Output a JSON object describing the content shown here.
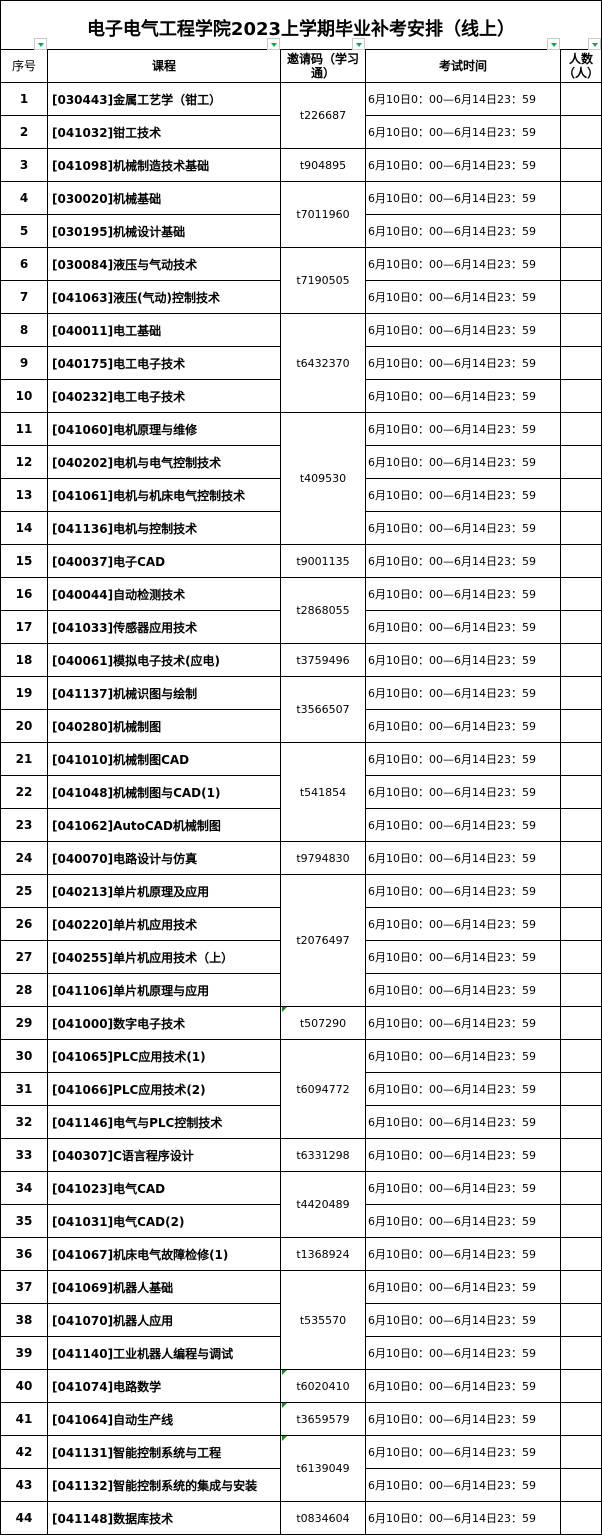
{
  "title": "电子电气工程学院2023上学期毕业补考安排（线上）",
  "headers": {
    "no": "序号",
    "course": "课程",
    "code": "邀请码（学习通）",
    "time": "考试时间",
    "count": "人数（人）"
  },
  "exam_time": "6月10日0：00—6月14日23：59",
  "colors": {
    "filter_arrow": "#1aa05a",
    "comment_marker": "#1a8a1a",
    "grid": "#000000"
  },
  "rows": [
    {
      "no": "1",
      "course": "[030443]金属工艺学（钳工）"
    },
    {
      "no": "2",
      "course": "[041032]钳工技术"
    },
    {
      "no": "3",
      "course": "[041098]机械制造技术基础"
    },
    {
      "no": "4",
      "course": "[030020]机械基础"
    },
    {
      "no": "5",
      "course": "[030195]机械设计基础"
    },
    {
      "no": "6",
      "course": "[030084]液压与气动技术"
    },
    {
      "no": "7",
      "course": "[041063]液压(气动)控制技术"
    },
    {
      "no": "8",
      "course": "[040011]电工基础"
    },
    {
      "no": "9",
      "course": "[040175]电工电子技术"
    },
    {
      "no": "10",
      "course": "[040232]电工电子技术"
    },
    {
      "no": "11",
      "course": "[041060]电机原理与维修"
    },
    {
      "no": "12",
      "course": "[040202]电机与电气控制技术"
    },
    {
      "no": "13",
      "course": "[041061]电机与机床电气控制技术"
    },
    {
      "no": "14",
      "course": "[041136]电机与控制技术"
    },
    {
      "no": "15",
      "course": "[040037]电子CAD"
    },
    {
      "no": "16",
      "course": "[040044]自动检测技术"
    },
    {
      "no": "17",
      "course": "[041033]传感器应用技术"
    },
    {
      "no": "18",
      "course": "[040061]模拟电子技术(应电)"
    },
    {
      "no": "19",
      "course": "[041137]机械识图与绘制"
    },
    {
      "no": "20",
      "course": "[040280]机械制图"
    },
    {
      "no": "21",
      "course": "[041010]机械制图CAD"
    },
    {
      "no": "22",
      "course": "[041048]机械制图与CAD(1)"
    },
    {
      "no": "23",
      "course": "[041062]AutoCAD机械制图"
    },
    {
      "no": "24",
      "course": "[040070]电路设计与仿真"
    },
    {
      "no": "25",
      "course": "[040213]单片机原理及应用"
    },
    {
      "no": "26",
      "course": "[040220]单片机应用技术"
    },
    {
      "no": "27",
      "course": "[040255]单片机应用技术（上）"
    },
    {
      "no": "28",
      "course": "[041106]单片机原理与应用"
    },
    {
      "no": "29",
      "course": "[041000]数字电子技术"
    },
    {
      "no": "30",
      "course": "[041065]PLC应用技术(1)"
    },
    {
      "no": "31",
      "course": "[041066]PLC应用技术(2)"
    },
    {
      "no": "32",
      "course": "[041146]电气与PLC控制技术"
    },
    {
      "no": "33",
      "course": "[040307]C语言程序设计"
    },
    {
      "no": "34",
      "course": "[041023]电气CAD"
    },
    {
      "no": "35",
      "course": "[041031]电气CAD(2)"
    },
    {
      "no": "36",
      "course": "[041067]机床电气故障检修(1)"
    },
    {
      "no": "37",
      "course": "[041069]机器人基础"
    },
    {
      "no": "38",
      "course": "[041070]机器人应用"
    },
    {
      "no": "39",
      "course": "[041140]工业机器人编程与调试"
    },
    {
      "no": "40",
      "course": "[041074]电路数学"
    },
    {
      "no": "41",
      "course": "[041064]自动生产线"
    },
    {
      "no": "42",
      "course": "[041131]智能控制系统与工程"
    },
    {
      "no": "43",
      "course": "[041132]智能控制系统的集成与安装"
    },
    {
      "no": "44",
      "course": "[041148]数据库技术"
    }
  ],
  "code_groups": [
    {
      "code": "t226687",
      "rows": 2
    },
    {
      "code": "t904895",
      "rows": 1
    },
    {
      "code": "t7011960",
      "rows": 2
    },
    {
      "code": "t7190505",
      "rows": 2
    },
    {
      "code": "t6432370",
      "rows": 3
    },
    {
      "code": "t409530",
      "rows": 4
    },
    {
      "code": "t9001135",
      "rows": 1
    },
    {
      "code": "t2868055",
      "rows": 2
    },
    {
      "code": "t3759496",
      "rows": 1
    },
    {
      "code": "t3566507",
      "rows": 2
    },
    {
      "code": "t541854",
      "rows": 3
    },
    {
      "code": "t9794830",
      "rows": 1
    },
    {
      "code": "t2076497",
      "rows": 4
    },
    {
      "code": "t507290",
      "rows": 1,
      "comment": true
    },
    {
      "code": "t6094772",
      "rows": 3
    },
    {
      "code": "t6331298",
      "rows": 1
    },
    {
      "code": "t4420489",
      "rows": 2
    },
    {
      "code": "t1368924",
      "rows": 1
    },
    {
      "code": "t535570",
      "rows": 3
    },
    {
      "code": "t6020410",
      "rows": 1,
      "comment": true
    },
    {
      "code": "t3659579",
      "rows": 1,
      "comment": true
    },
    {
      "code": "t6139049",
      "rows": 2,
      "comment": true
    },
    {
      "code": "t0834604",
      "rows": 1
    }
  ]
}
